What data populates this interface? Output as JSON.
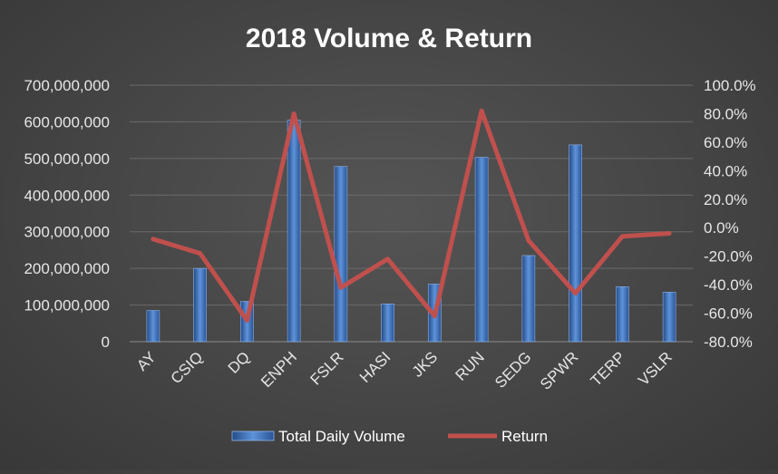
{
  "chart_data": {
    "type": "bar",
    "title": "2018 Volume & Return",
    "categories": [
      "AY",
      "CSIQ",
      "DQ",
      "ENPH",
      "FSLR",
      "HASI",
      "JKS",
      "RUN",
      "SEDG",
      "SPWR",
      "TERP",
      "VSLR"
    ],
    "series": [
      {
        "name": "Total Daily Volume",
        "type": "bar",
        "axis": "left",
        "color": "#3F74BF",
        "values": [
          85000000,
          200000000,
          110000000,
          605000000,
          478000000,
          103000000,
          157000000,
          503000000,
          235000000,
          537000000,
          150000000,
          135000000
        ]
      },
      {
        "name": "Return",
        "type": "line",
        "axis": "right",
        "color": "#C0504D",
        "values": [
          -0.08,
          -0.18,
          -0.65,
          0.8,
          -0.42,
          -0.22,
          -0.62,
          0.82,
          -0.09,
          -0.46,
          -0.06,
          -0.04
        ]
      }
    ],
    "ylim_left": [
      0,
      700000000
    ],
    "ylim_right": [
      -0.8,
      1.0
    ],
    "yticks_left": [
      "700,000,000",
      "600,000,000",
      "500,000,000",
      "400,000,000",
      "300,000,000",
      "200,000,000",
      "100,000,000",
      "0"
    ],
    "yticks_right": [
      "100.0%",
      "80.0%",
      "60.0%",
      "40.0%",
      "20.0%",
      "0.0%",
      "-20.0%",
      "-40.0%",
      "-60.0%",
      "-80.0%"
    ],
    "grid": true,
    "legend_position": "bottom",
    "colors": {
      "grid": "#6A6A6A",
      "text": "#FFFFFF",
      "axis_label": "#E6E6E6"
    }
  }
}
